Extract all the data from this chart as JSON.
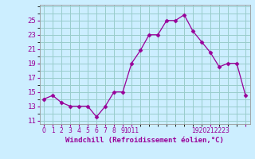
{
  "x": [
    0,
    1,
    2,
    3,
    4,
    5,
    6,
    7,
    8,
    9,
    10,
    11,
    12,
    13,
    14,
    15,
    16,
    17,
    18,
    19,
    20,
    21,
    22,
    23
  ],
  "y": [
    14.0,
    14.5,
    13.5,
    13.0,
    13.0,
    13.0,
    11.5,
    13.0,
    15.0,
    15.0,
    19.0,
    20.8,
    23.0,
    23.0,
    25.0,
    25.0,
    25.8,
    23.5,
    22.0,
    20.5,
    18.5,
    19.0,
    19.0,
    14.5
  ],
  "line_color": "#990099",
  "marker": "D",
  "marker_size": 2.5,
  "bg_color": "#cceeff",
  "grid_color": "#99cccc",
  "xlabel": "Windchill (Refroidissement éolien,°C)",
  "xlabel_color": "#990099",
  "tick_color": "#990099",
  "yticks": [
    11,
    13,
    15,
    17,
    19,
    21,
    23,
    25
  ],
  "xtick_labels": [
    "0",
    "1",
    "2",
    "3",
    "4",
    "5",
    "6",
    "7",
    "8",
    "9",
    "1011",
    "",
    "19202122",
    "23"
  ],
  "xlim": [
    -0.5,
    23.5
  ],
  "ylim": [
    10.5,
    27.2
  ]
}
